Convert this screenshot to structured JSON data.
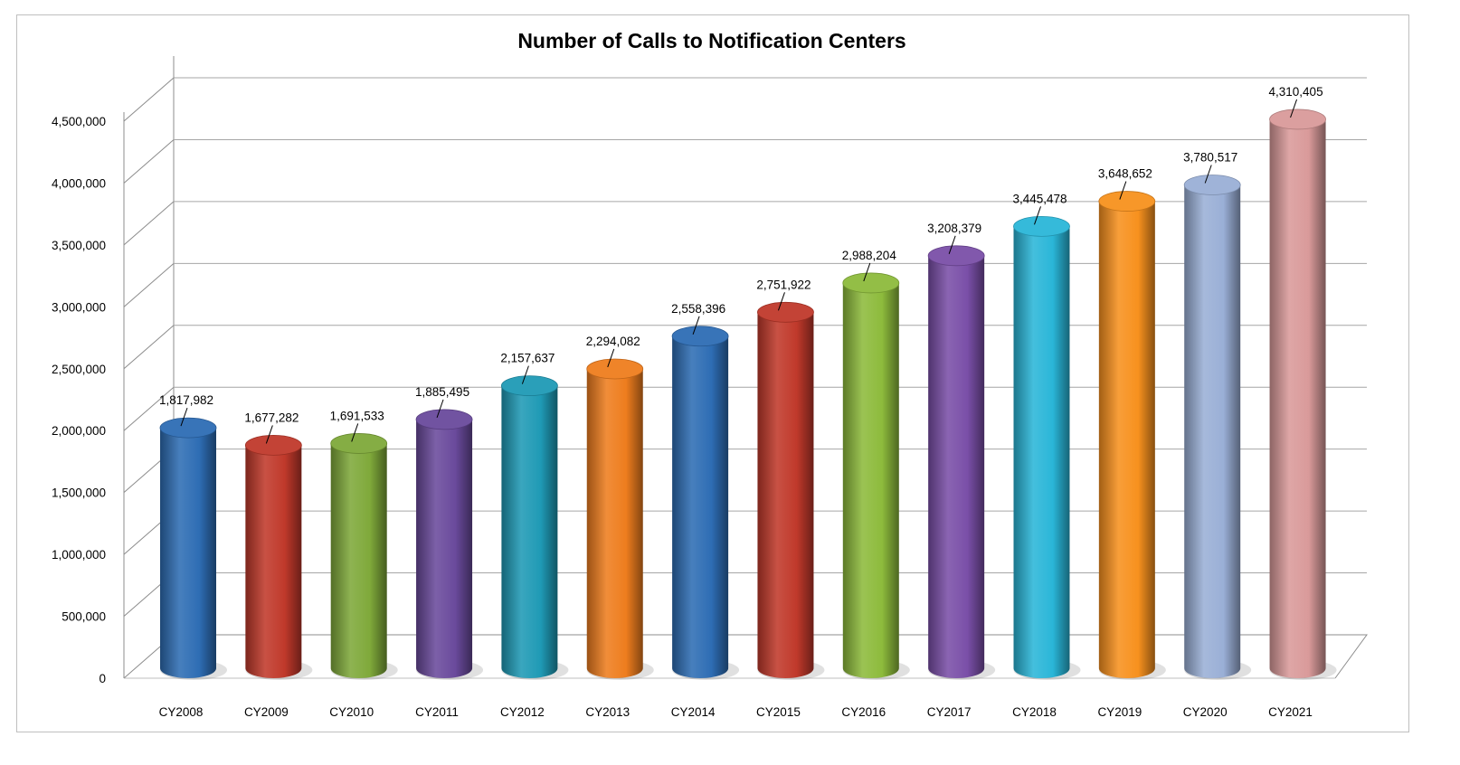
{
  "chart_data": {
    "type": "bar",
    "title": "Number of Calls to Notification Centers",
    "xlabel": "",
    "ylabel": "",
    "ylim": [
      0,
      4500000
    ],
    "yticks": [
      0,
      500000,
      1000000,
      1500000,
      2000000,
      2500000,
      3000000,
      3500000,
      4000000,
      4500000
    ],
    "ytick_labels": [
      "0",
      "500,000",
      "1,000,000",
      "1,500,000",
      "2,000,000",
      "2,500,000",
      "3,000,000",
      "3,500,000",
      "4,000,000",
      "4,500,000"
    ],
    "grid": true,
    "style": "3d-cylinder",
    "categories": [
      "CY2008",
      "CY2009",
      "CY2010",
      "CY2011",
      "CY2012",
      "CY2013",
      "CY2014",
      "CY2015",
      "CY2016",
      "CY2017",
      "CY2018",
      "CY2019",
      "CY2020",
      "CY2021"
    ],
    "values": [
      1817982,
      1677282,
      1691533,
      1885495,
      2157637,
      2294082,
      2558396,
      2751922,
      2988204,
      3208379,
      3445478,
      3648652,
      3780517,
      4310405
    ],
    "data_labels": [
      "1,817,982",
      "1,677,282",
      "1,691,533",
      "1,885,495",
      "2,157,637",
      "2,294,082",
      "2,558,396",
      "2,751,922",
      "2,988,204",
      "3,208,379",
      "3,445,478",
      "3,648,652",
      "3,780,517",
      "4,310,405"
    ],
    "colors": [
      "#2e6db4",
      "#c0392b",
      "#7fa93a",
      "#6a4a9c",
      "#1f9ab5",
      "#ee7d1e",
      "#2e6db4",
      "#c0392b",
      "#8dbb3c",
      "#7a4fa8",
      "#2ab6d8",
      "#f7911e",
      "#9aafd6",
      "#d99a9a"
    ]
  }
}
